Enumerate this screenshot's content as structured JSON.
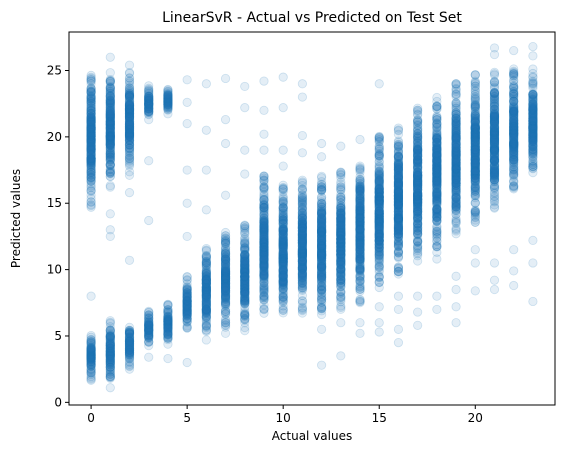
{
  "chart_data": {
    "type": "scatter",
    "title": "LinearSvR - Actual vs Predicted on Test Set",
    "xlabel": "Actual values",
    "ylabel": "Predicted values",
    "xlim": [
      -1.15,
      24.15
    ],
    "ylim": [
      -0.2,
      27.9
    ],
    "xticks": [
      0,
      5,
      10,
      15,
      20
    ],
    "yticks": [
      0,
      5,
      10,
      15,
      20,
      25
    ],
    "grid": false,
    "legend": "none",
    "marker": "circle",
    "point_color": "#1f77b4",
    "point_alpha": 0.12,
    "series": [
      {
        "x": [
          0,
          1,
          2,
          3,
          4,
          5,
          6,
          7,
          8,
          9,
          10,
          11,
          12,
          13,
          14,
          15,
          16,
          17,
          18,
          19,
          20,
          21,
          22,
          23
        ],
        "dense_min": [
          1.5,
          1.6,
          2.6,
          4.2,
          4.2,
          5.5,
          5.2,
          5.6,
          5.6,
          6.5,
          6.4,
          6.5,
          6.6,
          7.0,
          7.5,
          8.5,
          9.5,
          10.5,
          11.5,
          12.5,
          13.5,
          14.5,
          16.0,
          17.0
        ],
        "dense_max": [
          5.4,
          6.2,
          6.0,
          7.0,
          7.4,
          9.5,
          11.8,
          12.8,
          13.5,
          17.2,
          16.5,
          16.8,
          17.2,
          17.5,
          18.8,
          20.3,
          21.2,
          22.2,
          23.0,
          24.2,
          24.8,
          25.2,
          25.2,
          25.2
        ],
        "upper_min": [
          14.8,
          16.2,
          17.0,
          21.2,
          21.5,
          0,
          0,
          0,
          0,
          0,
          0,
          0,
          0,
          0,
          0,
          0,
          0,
          0,
          0,
          0,
          0,
          0,
          0,
          0
        ],
        "upper_max": [
          25.2,
          25.2,
          25.0,
          24.0,
          23.8,
          0,
          0,
          0,
          0,
          0,
          0,
          0,
          0,
          0,
          0,
          0,
          0,
          0,
          0,
          0,
          0,
          0,
          0,
          0
        ],
        "outliers": [
          [
            0,
            8.0
          ],
          [
            0,
            14.7
          ],
          [
            1,
            12.5
          ],
          [
            1,
            13.0
          ],
          [
            1,
            14.2
          ],
          [
            1,
            26.0
          ],
          [
            2,
            10.7
          ],
          [
            2,
            15.8
          ],
          [
            2,
            25.4
          ],
          [
            3,
            13.7
          ],
          [
            3,
            18.2
          ],
          [
            1,
            1.1
          ],
          [
            2,
            2.5
          ],
          [
            3,
            3.4
          ],
          [
            4,
            3.3
          ],
          [
            5,
            3.0
          ],
          [
            6,
            4.7
          ],
          [
            7,
            5.2
          ],
          [
            8,
            5.4
          ],
          [
            5,
            24.3
          ],
          [
            5,
            22.6
          ],
          [
            5,
            21.0
          ],
          [
            5,
            17.5
          ],
          [
            5,
            15.0
          ],
          [
            5,
            12.5
          ],
          [
            6,
            24.0
          ],
          [
            6,
            20.5
          ],
          [
            6,
            17.5
          ],
          [
            6,
            14.5
          ],
          [
            7,
            24.4
          ],
          [
            7,
            21.3
          ],
          [
            7,
            19.5
          ],
          [
            7,
            15.6
          ],
          [
            8,
            23.8
          ],
          [
            8,
            22.2
          ],
          [
            8,
            19.0
          ],
          [
            8,
            17.2
          ],
          [
            9,
            24.2
          ],
          [
            9,
            22.0
          ],
          [
            9,
            20.2
          ],
          [
            9,
            19.0
          ],
          [
            10,
            24.5
          ],
          [
            10,
            22.2
          ],
          [
            10,
            19.0
          ],
          [
            10,
            17.8
          ],
          [
            11,
            24.0
          ],
          [
            11,
            23.0
          ],
          [
            11,
            20.1
          ],
          [
            11,
            18.8
          ],
          [
            12,
            2.8
          ],
          [
            12,
            19.5
          ],
          [
            12,
            18.5
          ],
          [
            12,
            5.5
          ],
          [
            13,
            3.5
          ],
          [
            13,
            19.3
          ],
          [
            13,
            6.0
          ],
          [
            14,
            6.0
          ],
          [
            14,
            19.8
          ],
          [
            14,
            5.2
          ],
          [
            15,
            6.0
          ],
          [
            15,
            5.3
          ],
          [
            15,
            7.2
          ],
          [
            15,
            24.0
          ],
          [
            16,
            4.5
          ],
          [
            16,
            5.5
          ],
          [
            16,
            7.0
          ],
          [
            16,
            8.0
          ],
          [
            17,
            5.8
          ],
          [
            17,
            6.8
          ],
          [
            17,
            8.0
          ],
          [
            18,
            7.0
          ],
          [
            18,
            8.0
          ],
          [
            18,
            10.8
          ],
          [
            18,
            11.3
          ],
          [
            19,
            6.0
          ],
          [
            19,
            7.2
          ],
          [
            19,
            8.5
          ],
          [
            19,
            9.5
          ],
          [
            20,
            8.4
          ],
          [
            20,
            10.5
          ],
          [
            20,
            11.5
          ],
          [
            21,
            8.5
          ],
          [
            21,
            9.2
          ],
          [
            21,
            10.5
          ],
          [
            21,
            26.7
          ],
          [
            21,
            26.2
          ],
          [
            22,
            8.8
          ],
          [
            22,
            9.9
          ],
          [
            22,
            11.5
          ],
          [
            22,
            26.5
          ],
          [
            23,
            7.6
          ],
          [
            23,
            10.5
          ],
          [
            23,
            12.2
          ],
          [
            23,
            26.8
          ],
          [
            23,
            26.1
          ]
        ]
      }
    ]
  }
}
